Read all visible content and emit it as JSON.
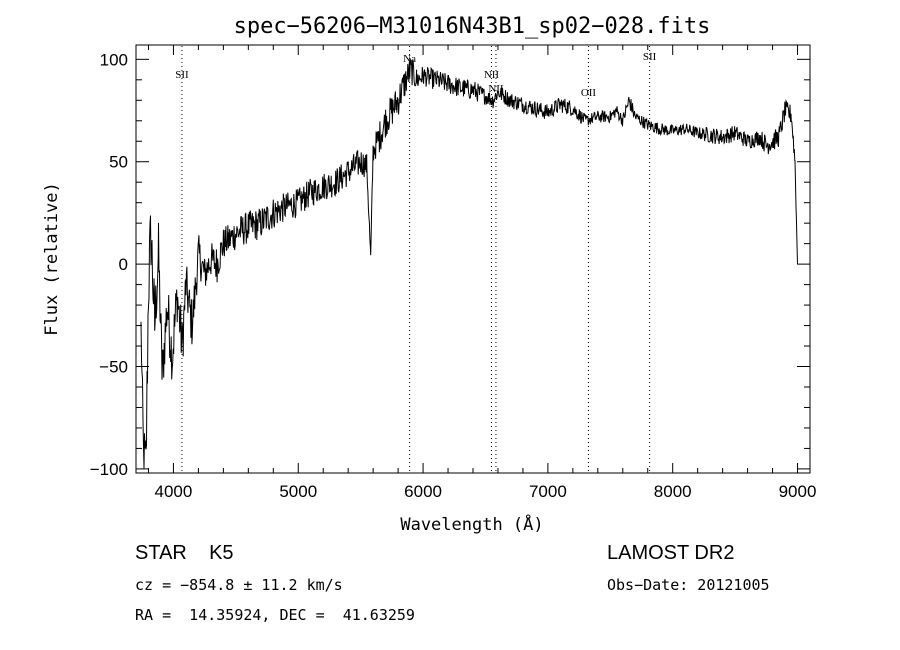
{
  "chart_data": {
    "type": "line",
    "title": "spec−56206−M31016N43B1_sp02−028.fits",
    "xlabel": "Wavelength (Å)",
    "ylabel": "Flux (relative)",
    "xlim": [
      3700,
      9100
    ],
    "ylim": [
      -102,
      107
    ],
    "x_ticks": [
      4000,
      5000,
      6000,
      7000,
      8000,
      9000
    ],
    "x_tick_labels": [
      "4000",
      "5000",
      "6000",
      "7000",
      "8000",
      "9000"
    ],
    "y_ticks": [
      -100,
      -50,
      0,
      50,
      100
    ],
    "y_tick_labels": [
      "−100",
      "−50",
      "0",
      "50",
      "100"
    ],
    "grid": false,
    "series": [
      {
        "x": [
          3740,
          3760,
          3780,
          3800,
          3820,
          3850,
          3880,
          3910,
          3950,
          3990,
          4030,
          4070,
          4100,
          4150,
          4200,
          4250,
          4300,
          4350,
          4400,
          4450,
          4500,
          4600,
          4700,
          4800,
          4900,
          5000,
          5100,
          5200,
          5300,
          5400,
          5500,
          5550,
          5580,
          5600,
          5650,
          5700,
          5750,
          5800,
          5850,
          5900,
          5950,
          6000,
          6100,
          6200,
          6300,
          6400,
          6500,
          6560,
          6600,
          6700,
          6800,
          6900,
          7000,
          7100,
          7200,
          7300,
          7400,
          7500,
          7550,
          7600,
          7650,
          7700,
          7800,
          7900,
          8000,
          8100,
          8200,
          8300,
          8400,
          8500,
          8600,
          8700,
          8750,
          8800,
          8850,
          8900,
          8950,
          8980,
          9000
        ],
        "y": [
          -30,
          -95,
          -100,
          -10,
          15,
          -30,
          5,
          -55,
          -20,
          -45,
          -15,
          -40,
          -10,
          -30,
          5,
          -5,
          2,
          0,
          10,
          12,
          15,
          18,
          20,
          25,
          28,
          30,
          35,
          38,
          40,
          45,
          50,
          48,
          3,
          55,
          62,
          70,
          75,
          80,
          88,
          95,
          90,
          92,
          90,
          88,
          86,
          85,
          82,
          80,
          84,
          80,
          78,
          76,
          74,
          78,
          76,
          70,
          72,
          72,
          75,
          70,
          80,
          72,
          68,
          66,
          65,
          66,
          64,
          63,
          62,
          64,
          60,
          62,
          58,
          60,
          62,
          75,
          73,
          50,
          0
        ],
        "noise": [
          6,
          18,
          20,
          20,
          20,
          16,
          16,
          14,
          14,
          14,
          14,
          14,
          12,
          12,
          10,
          9,
          9,
          9,
          8,
          8,
          8,
          8,
          8,
          8,
          7,
          7,
          7,
          7,
          7,
          7,
          7,
          6,
          4,
          6,
          8,
          8,
          8,
          8,
          8,
          7,
          6,
          5,
          5,
          5,
          5,
          5,
          4,
          4,
          4,
          4,
          4,
          4,
          4,
          4,
          4,
          3,
          3,
          3,
          3,
          3,
          4,
          3,
          3,
          3,
          3,
          3,
          3,
          4,
          4,
          4,
          4,
          4,
          5,
          5,
          5,
          5,
          5,
          4,
          0
        ]
      }
    ],
    "line_markers": [
      {
        "label": "SII",
        "x": 4068
      },
      {
        "label": "Na",
        "x": 5892
      },
      {
        "label": "NII",
        "x": 6548
      },
      {
        "label": "NII",
        "x": 6584
      },
      {
        "label": "OII",
        "x": 7325
      },
      {
        "label": "SII",
        "x": 7815
      }
    ]
  },
  "info": {
    "class_line": "STAR    K5",
    "survey": "LAMOST DR2",
    "redshift_line": "cz = −854.8 ± 11.2 km/s",
    "obs_date": "Obs−Date: 20121005",
    "coords_line": "RA =  14.35924, DEC =  41.63259"
  }
}
